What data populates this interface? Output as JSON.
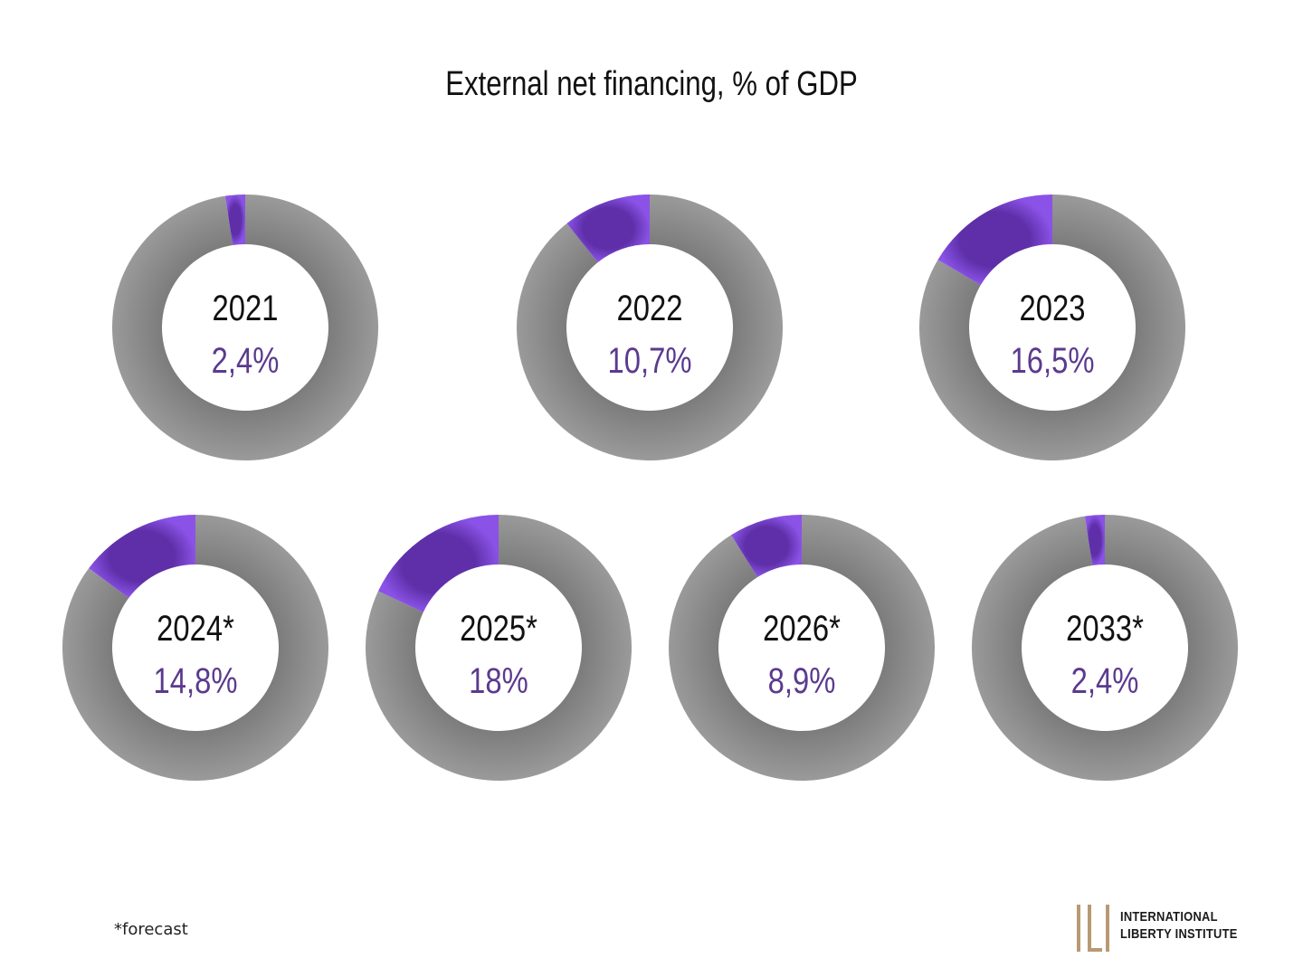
{
  "chart_data": {
    "type": "pie",
    "subtype": "donut",
    "title": "External net financing, % of GDP",
    "unit": "% of GDP",
    "series": [
      {
        "name": "2021",
        "value": 2.4,
        "label": "2,4%"
      },
      {
        "name": "2022",
        "value": 10.7,
        "label": "10,7%"
      },
      {
        "name": "2023",
        "value": 16.5,
        "label": "16,5%"
      },
      {
        "name": "2024*",
        "value": 14.8,
        "label": "14,8%"
      },
      {
        "name": "2025*",
        "value": 18,
        "label": "18%"
      },
      {
        "name": "2026*",
        "value": 8.9,
        "label": "8,9%"
      },
      {
        "name": "2033*",
        "value": 2.4,
        "label": "2,4%"
      }
    ],
    "footnote": "*forecast",
    "colors": {
      "highlight": "#7A45D6",
      "remainder": "#8C8C8C",
      "value_text": "#5B3A8E",
      "year_text": "#111111"
    }
  },
  "brand": {
    "line1": "International",
    "line2": "Liberty Institute",
    "color": "#B79A74"
  }
}
